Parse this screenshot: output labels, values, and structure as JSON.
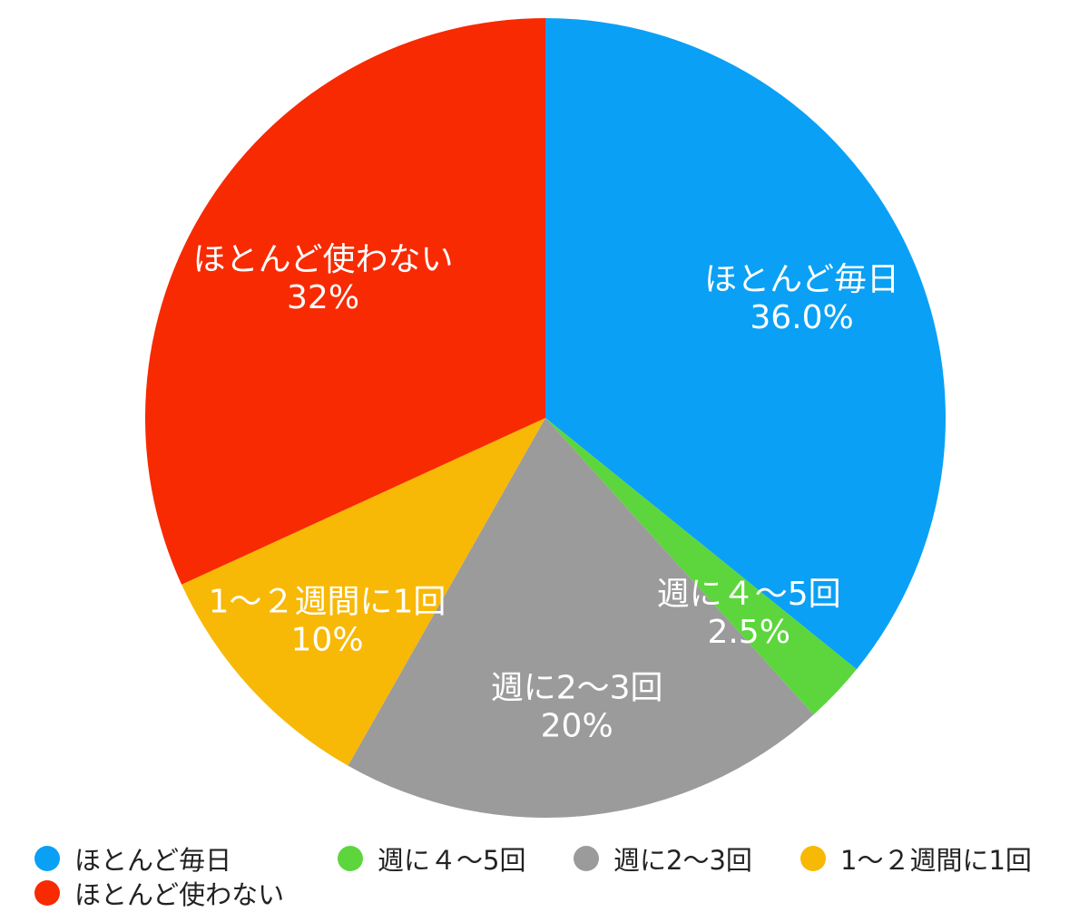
{
  "chart_data": {
    "type": "pie",
    "title": "",
    "legend_placement": "bottom",
    "slices": [
      {
        "label": "ほとんど毎日",
        "value": 36.0,
        "value_label": "36.0%",
        "color": "#0aa0f5"
      },
      {
        "label": "週に４～5回",
        "value": 2.5,
        "value_label": "2.5%",
        "color": "#5cd63c"
      },
      {
        "label": "週に2～3回",
        "value": 20,
        "value_label": "20%",
        "color": "#9b9b9b"
      },
      {
        "label": "1～２週間に1回",
        "value": 10,
        "value_label": "10%",
        "color": "#f8b806"
      },
      {
        "label": "ほとんど使わない",
        "value": 32,
        "value_label": "32%",
        "color": "#f82a02"
      }
    ]
  },
  "legend": {
    "items": [
      {
        "label": "ほとんど毎日",
        "color": "#0aa0f5"
      },
      {
        "label": "週に４～5回",
        "color": "#5cd63c"
      },
      {
        "label": "週に2～3回",
        "color": "#9b9b9b"
      },
      {
        "label": "1～２週間に1回",
        "color": "#f8b806"
      },
      {
        "label": "ほとんど使わない",
        "color": "#f82a02"
      }
    ]
  }
}
